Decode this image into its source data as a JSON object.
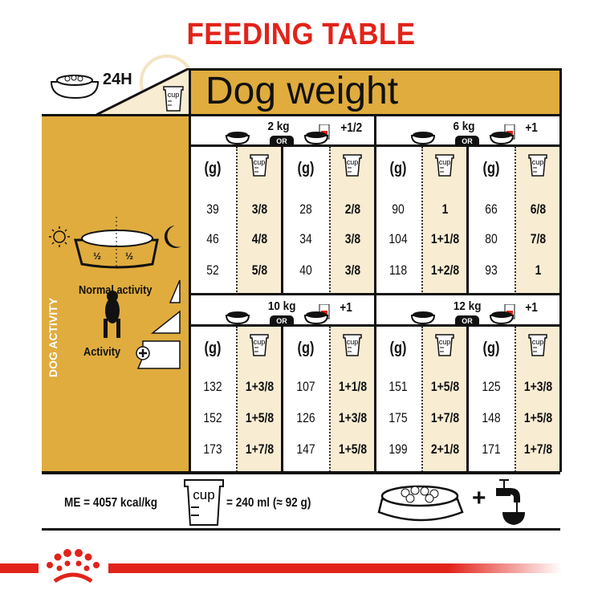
{
  "title": "FEEDING TABLE",
  "header": {
    "period": "24H",
    "dog_weight_label": "Dog weight",
    "cup_label": "cup"
  },
  "left_panel": {
    "split_labels": [
      "½",
      "½"
    ],
    "side_label": "DOG ACTIVITY",
    "normal_activity": "Normal activity",
    "activity": "Activity",
    "icons": [
      "food-bowl-icon",
      "clock-icon",
      "sun-icon",
      "moon-icon",
      "dog-silhouette-icon",
      "plus-circle-icon"
    ]
  },
  "or_label": "OR",
  "gram_header": "(g)",
  "colors": {
    "brand_red": "#e2231a",
    "gold": "#e0ac3e",
    "cream": "#f8ecd3"
  },
  "blocks": [
    {
      "weight": "2 kg",
      "wet_addition": "+1/2",
      "dry_only": {
        "grams": [
          "39",
          "46",
          "52"
        ],
        "cups": [
          "3/8",
          "4/8",
          "5/8"
        ]
      },
      "mixed": {
        "grams": [
          "28",
          "34",
          "40"
        ],
        "cups": [
          "2/8",
          "3/8",
          "3/8"
        ]
      }
    },
    {
      "weight": "6 kg",
      "wet_addition": "+1",
      "dry_only": {
        "grams": [
          "90",
          "104",
          "118"
        ],
        "cups": [
          "1",
          "1+1/8",
          "1+2/8"
        ]
      },
      "mixed": {
        "grams": [
          "66",
          "80",
          "93"
        ],
        "cups": [
          "6/8",
          "7/8",
          "1"
        ]
      }
    },
    {
      "weight": "10 kg",
      "wet_addition": "+1",
      "dry_only": {
        "grams": [
          "132",
          "152",
          "173"
        ],
        "cups": [
          "1+3/8",
          "1+5/8",
          "1+7/8"
        ]
      },
      "mixed": {
        "grams": [
          "107",
          "126",
          "147"
        ],
        "cups": [
          "1+1/8",
          "1+3/8",
          "1+5/8"
        ]
      }
    },
    {
      "weight": "12 kg",
      "wet_addition": "+1",
      "dry_only": {
        "grams": [
          "151",
          "175",
          "199"
        ],
        "cups": [
          "1+5/8",
          "1+7/8",
          "2+1/8"
        ]
      },
      "mixed": {
        "grams": [
          "125",
          "148",
          "171"
        ],
        "cups": [
          "1+3/8",
          "1+5/8",
          "1+7/8"
        ]
      }
    }
  ],
  "footer": {
    "energy": "ME = 4057 kcal/kg",
    "cup_equivalence": "= 240 ml (≈ 92 g)",
    "plus": "+",
    "icons": [
      "food-bowl-icon",
      "water-tap-icon"
    ]
  },
  "brand": {
    "logo": "Royal Canin crown logo"
  }
}
